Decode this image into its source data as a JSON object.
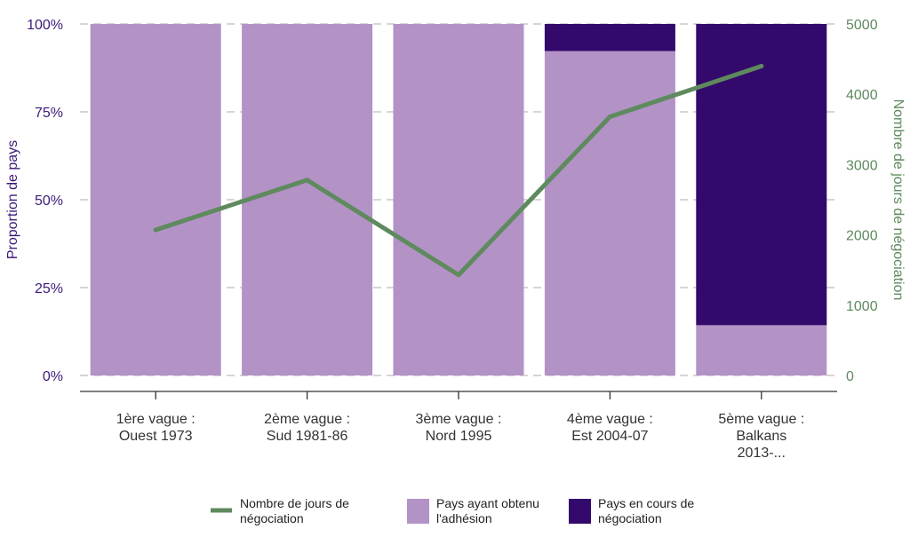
{
  "chart_data": {
    "type": "bar",
    "categories": [
      [
        "1ère vague :",
        "Ouest 1973"
      ],
      [
        "2ème vague :",
        "Sud 1981-86"
      ],
      [
        "3ème vague :",
        "Nord 1995"
      ],
      [
        "4ème vague :",
        "Est 2004-07"
      ],
      [
        "5ème vague :",
        "Balkans",
        "2013-..."
      ]
    ],
    "series": [
      {
        "name": "Pays ayant obtenu l'adhésion",
        "kind": "bar-stacked",
        "axis": "left",
        "color": "#b392c6",
        "values": [
          100,
          100,
          100,
          92.3,
          14.3
        ]
      },
      {
        "name": "Pays en cours de négociation",
        "kind": "bar-stacked",
        "axis": "left",
        "color": "#33096b",
        "values": [
          0,
          0,
          0,
          7.7,
          85.7
        ]
      },
      {
        "name": "Nombre de jours de négociation",
        "kind": "line",
        "axis": "right",
        "color": "#5e8a5e",
        "values": [
          2070,
          2780,
          1430,
          3680,
          4400
        ]
      }
    ],
    "yleft": {
      "label": "Proportion de pays",
      "ticks": [
        "0%",
        "25%",
        "50%",
        "75%",
        "100%"
      ],
      "ylim": [
        0,
        100
      ]
    },
    "yright": {
      "label": "Nombre de jours de négociation",
      "ticks": [
        "0",
        "1000",
        "2000",
        "3000",
        "4000",
        "5000"
      ],
      "ylim": [
        0,
        5000
      ]
    },
    "grid": "horizontal-dashed",
    "legend": {
      "position": "bottom",
      "items": [
        {
          "lines": [
            "Nombre de jours de",
            "négociation"
          ],
          "symbol": "line",
          "color": "#5e8a5e"
        },
        {
          "lines": [
            "Pays ayant obtenu",
            "l'adhésion"
          ],
          "symbol": "square",
          "color": "#b392c6"
        },
        {
          "lines": [
            "Pays en cours de",
            "négociation"
          ],
          "symbol": "square",
          "color": "#33096b"
        }
      ]
    }
  }
}
